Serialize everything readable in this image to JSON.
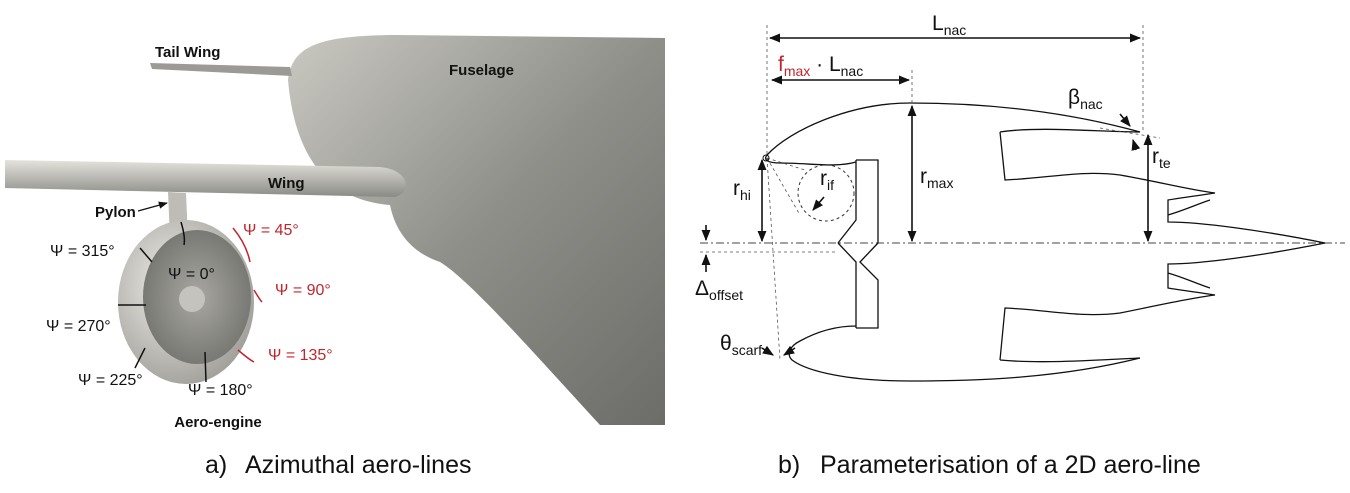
{
  "panel_a": {
    "marker": "a)",
    "caption": "Azimuthal aero-lines",
    "labels": {
      "tail_wing": "Tail Wing",
      "fuselage": "Fuselage",
      "wing": "Wing",
      "pylon": "Pylon",
      "aero_engine": "Aero-engine"
    },
    "azimuths": [
      "Ψ = 0°",
      "Ψ = 45°",
      "Ψ = 90°",
      "Ψ = 135°",
      "Ψ = 180°",
      "Ψ = 225°",
      "Ψ = 270°",
      "Ψ = 315°"
    ]
  },
  "panel_b": {
    "marker": "b)",
    "caption": "Parameterisation of a 2D aero-line",
    "symbols": {
      "l_nac": {
        "main": "L",
        "sub": "nac"
      },
      "f_max": {
        "main": "f",
        "sub": "max"
      },
      "f_l_nac": {
        "main": " · L",
        "sub": "nac"
      },
      "beta_nac": {
        "main": "β",
        "sub": "nac"
      },
      "r_hi": {
        "main": "r",
        "sub": "hi"
      },
      "r_if": {
        "main": "r",
        "sub": "if"
      },
      "r_max": {
        "main": "r",
        "sub": "max"
      },
      "r_te": {
        "main": "r",
        "sub": "te"
      },
      "delta_offset": {
        "main": "Δ",
        "sub": "offset"
      },
      "theta_scarf": {
        "main": "θ",
        "sub": "scarf"
      }
    }
  }
}
